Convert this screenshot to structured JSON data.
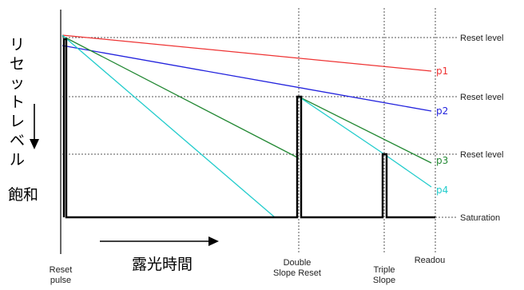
{
  "axis": {
    "vertical_label": "リセットレベル",
    "saturation_label": "飽和",
    "exposure_time_label": "露光時間"
  },
  "levels": [
    {
      "label": "Reset level"
    },
    {
      "label": "Reset level"
    },
    {
      "label": "Reset level"
    },
    {
      "label": "Saturation"
    }
  ],
  "events": {
    "reset_pulse": "Reset\npulse",
    "double_slope_reset": "Double\nSlope Reset",
    "triple_slope": "Triple\nSlope",
    "readout": "Readou"
  },
  "series": [
    {
      "name": "p1",
      "color": "#ee3333"
    },
    {
      "name": "p2",
      "color": "#2222dd"
    },
    {
      "name": "p3",
      "color": "#228833"
    },
    {
      "name": "p4",
      "color": "#22cccc"
    }
  ]
}
